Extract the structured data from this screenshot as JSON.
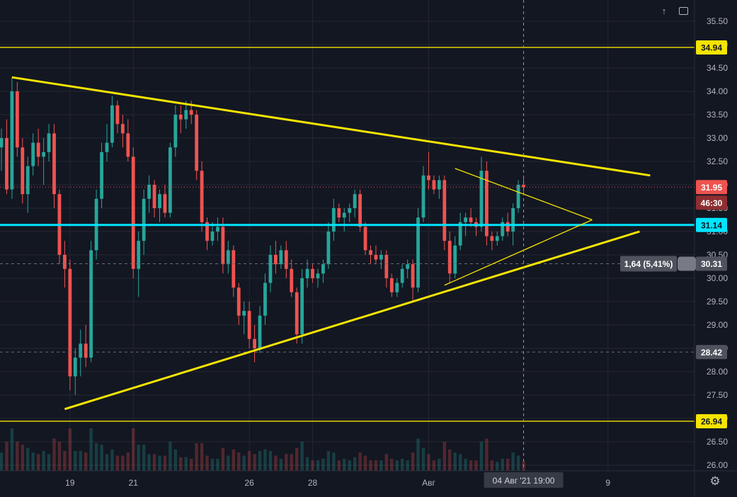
{
  "chart_data": {
    "type": "candlestick",
    "y_axis": {
      "min": 25.9,
      "max": 35.85,
      "ticks": [
        "35.50",
        "35.00",
        "34.50",
        "34.00",
        "33.50",
        "33.00",
        "32.50",
        "32.00",
        "31.50",
        "31.00",
        "30.50",
        "30.00",
        "29.50",
        "29.00",
        "28.50",
        "28.00",
        "27.50",
        "27.00",
        "26.50",
        "26.00"
      ]
    },
    "x_axis": {
      "ticks": [
        {
          "label": "19",
          "index": 13
        },
        {
          "label": "21",
          "index": 25
        },
        {
          "label": "26",
          "index": 47
        },
        {
          "label": "28",
          "index": 59
        },
        {
          "label": "Авг",
          "index": 81
        },
        {
          "label": "9",
          "index": 115
        }
      ],
      "crosshair_label": "04 Авг '21   19:00",
      "crosshair_index": 99
    },
    "price_labels": [
      {
        "value": 34.94,
        "text": "34.94",
        "style": "yellow"
      },
      {
        "value": 31.95,
        "text": "31.95",
        "style": "red"
      },
      {
        "value": 31.63,
        "text": "46:30",
        "style": "red-dark"
      },
      {
        "value": 31.14,
        "text": "31.14",
        "style": "cyan"
      },
      {
        "value": 30.31,
        "text": "30.31",
        "style": "gray"
      },
      {
        "value": 28.42,
        "text": "28.42",
        "style": "gray"
      },
      {
        "value": 26.94,
        "text": "26.94",
        "style": "yellow"
      }
    ],
    "measure_label": {
      "text": "1,64 (5,41%)",
      "value": 30.31
    },
    "horizontal_levels": [
      {
        "value": 34.94,
        "color": "#f5e400"
      },
      {
        "value": 31.14,
        "color": "#00e5ff"
      },
      {
        "value": 26.94,
        "color": "#f5e400"
      }
    ],
    "trendlines": [
      {
        "from": [
          2,
          34.3
        ],
        "to": [
          123,
          32.2
        ],
        "color": "#f5e400"
      },
      {
        "from": [
          12,
          27.2
        ],
        "to": [
          121,
          31.0
        ],
        "color": "#f5e400"
      },
      {
        "from": [
          86,
          32.35
        ],
        "to": [
          112,
          31.25
        ],
        "color": "#f5e400"
      },
      {
        "from": [
          84,
          29.85
        ],
        "to": [
          112,
          31.25
        ],
        "color": "#f5e400"
      }
    ],
    "colors": {
      "up": "#26a69a",
      "down": "#ef5350",
      "background": "#131722",
      "grid": "#242733",
      "axis_text": "#b2b5be"
    },
    "candles": [
      [
        32.8,
        33.2,
        32.3,
        33.0
      ],
      [
        33.0,
        33.4,
        31.8,
        31.9
      ],
      [
        31.9,
        34.3,
        31.7,
        34.0
      ],
      [
        34.0,
        34.2,
        32.6,
        32.8
      ],
      [
        32.8,
        33.0,
        31.6,
        31.8
      ],
      [
        31.8,
        32.6,
        31.4,
        32.4
      ],
      [
        32.4,
        33.1,
        32.2,
        32.9
      ],
      [
        32.9,
        33.2,
        32.4,
        32.6
      ],
      [
        32.6,
        33.0,
        32.0,
        32.7
      ],
      [
        32.7,
        33.3,
        32.5,
        33.1
      ],
      [
        33.1,
        33.3,
        31.5,
        31.8
      ],
      [
        31.8,
        31.9,
        30.3,
        30.5
      ],
      [
        30.5,
        30.8,
        29.8,
        30.2
      ],
      [
        30.2,
        30.4,
        27.6,
        27.9
      ],
      [
        27.9,
        28.5,
        27.5,
        28.3
      ],
      [
        28.3,
        28.9,
        27.9,
        28.6
      ],
      [
        28.6,
        29.0,
        28.1,
        28.3
      ],
      [
        28.3,
        30.8,
        28.2,
        30.6
      ],
      [
        30.6,
        31.9,
        30.4,
        31.7
      ],
      [
        31.7,
        32.9,
        31.5,
        32.7
      ],
      [
        32.7,
        33.3,
        32.5,
        32.9
      ],
      [
        32.9,
        33.9,
        32.8,
        33.7
      ],
      [
        33.7,
        33.8,
        33.1,
        33.3
      ],
      [
        33.3,
        33.5,
        32.8,
        33.1
      ],
      [
        33.1,
        33.4,
        32.5,
        32.6
      ],
      [
        32.6,
        32.8,
        30.0,
        30.2
      ],
      [
        30.2,
        31.0,
        29.6,
        30.8
      ],
      [
        30.8,
        31.9,
        30.5,
        31.7
      ],
      [
        31.7,
        32.2,
        31.4,
        32.0
      ],
      [
        32.0,
        32.1,
        31.3,
        31.5
      ],
      [
        31.5,
        31.9,
        31.2,
        31.8
      ],
      [
        31.8,
        32.0,
        31.3,
        31.4
      ],
      [
        31.4,
        32.9,
        31.3,
        32.8
      ],
      [
        32.8,
        33.7,
        32.6,
        33.5
      ],
      [
        33.5,
        33.7,
        33.1,
        33.4
      ],
      [
        33.4,
        33.8,
        33.2,
        33.6
      ],
      [
        33.6,
        33.8,
        33.3,
        33.5
      ],
      [
        33.5,
        33.6,
        32.1,
        32.3
      ],
      [
        32.3,
        32.5,
        31.0,
        31.2
      ],
      [
        31.2,
        31.3,
        30.6,
        30.8
      ],
      [
        30.8,
        31.2,
        30.7,
        31.0
      ],
      [
        31.0,
        31.3,
        30.8,
        31.1
      ],
      [
        31.1,
        31.3,
        30.1,
        30.3
      ],
      [
        30.3,
        30.8,
        30.1,
        30.6
      ],
      [
        30.6,
        30.7,
        29.6,
        29.8
      ],
      [
        29.8,
        29.9,
        29.0,
        29.2
      ],
      [
        29.2,
        29.5,
        28.8,
        29.3
      ],
      [
        29.3,
        29.5,
        28.5,
        28.7
      ],
      [
        28.7,
        29.0,
        28.2,
        28.5
      ],
      [
        28.5,
        29.4,
        28.4,
        29.2
      ],
      [
        29.2,
        30.1,
        29.0,
        29.9
      ],
      [
        29.9,
        30.7,
        29.7,
        30.5
      ],
      [
        30.5,
        30.8,
        30.1,
        30.3
      ],
      [
        30.3,
        30.7,
        30.2,
        30.6
      ],
      [
        30.6,
        30.8,
        30.0,
        30.2
      ],
      [
        30.2,
        30.4,
        29.6,
        29.7
      ],
      [
        29.7,
        29.8,
        28.6,
        28.8
      ],
      [
        28.8,
        30.2,
        28.6,
        30.0
      ],
      [
        30.0,
        30.4,
        29.8,
        30.2
      ],
      [
        30.2,
        30.3,
        29.9,
        30.0
      ],
      [
        30.0,
        30.2,
        29.8,
        30.1
      ],
      [
        30.1,
        30.4,
        29.9,
        30.3
      ],
      [
        30.3,
        31.2,
        30.2,
        31.0
      ],
      [
        31.0,
        31.7,
        30.8,
        31.5
      ],
      [
        31.5,
        31.6,
        31.2,
        31.3
      ],
      [
        31.3,
        31.5,
        31.0,
        31.4
      ],
      [
        31.4,
        31.6,
        31.2,
        31.5
      ],
      [
        31.5,
        31.9,
        31.3,
        31.8
      ],
      [
        31.8,
        31.9,
        31.0,
        31.1
      ],
      [
        31.1,
        31.2,
        30.5,
        30.6
      ],
      [
        30.6,
        30.7,
        30.3,
        30.5
      ],
      [
        30.5,
        30.7,
        30.3,
        30.4
      ],
      [
        30.4,
        30.6,
        30.2,
        30.5
      ],
      [
        30.5,
        30.6,
        29.8,
        30.0
      ],
      [
        30.0,
        30.1,
        29.6,
        29.7
      ],
      [
        29.7,
        30.0,
        29.6,
        29.9
      ],
      [
        29.9,
        30.3,
        29.8,
        30.2
      ],
      [
        30.2,
        30.4,
        30.0,
        30.3
      ],
      [
        30.3,
        30.4,
        29.5,
        29.8
      ],
      [
        29.8,
        31.5,
        29.7,
        31.3
      ],
      [
        31.3,
        32.4,
        31.2,
        32.2
      ],
      [
        32.2,
        32.7,
        31.9,
        32.1
      ],
      [
        32.1,
        32.2,
        31.8,
        31.9
      ],
      [
        31.9,
        32.2,
        31.7,
        32.1
      ],
      [
        32.1,
        32.2,
        30.6,
        30.8
      ],
      [
        30.8,
        31.0,
        29.9,
        30.1
      ],
      [
        30.1,
        30.9,
        30.0,
        30.7
      ],
      [
        30.7,
        31.4,
        30.6,
        31.2
      ],
      [
        31.2,
        31.4,
        30.9,
        31.3
      ],
      [
        31.3,
        31.5,
        31.1,
        31.2
      ],
      [
        31.2,
        31.3,
        30.9,
        31.1
      ],
      [
        31.1,
        32.6,
        31.0,
        32.3
      ],
      [
        32.3,
        32.5,
        30.7,
        30.9
      ],
      [
        30.9,
        31.0,
        30.6,
        30.8
      ],
      [
        30.8,
        31.0,
        30.7,
        30.9
      ],
      [
        30.9,
        31.3,
        30.8,
        31.2
      ],
      [
        31.2,
        31.4,
        30.9,
        31.0
      ],
      [
        31.0,
        31.6,
        30.7,
        31.5
      ],
      [
        31.5,
        32.1,
        31.4,
        32.0
      ],
      [
        32.0,
        32.15,
        31.8,
        31.95
      ]
    ]
  }
}
